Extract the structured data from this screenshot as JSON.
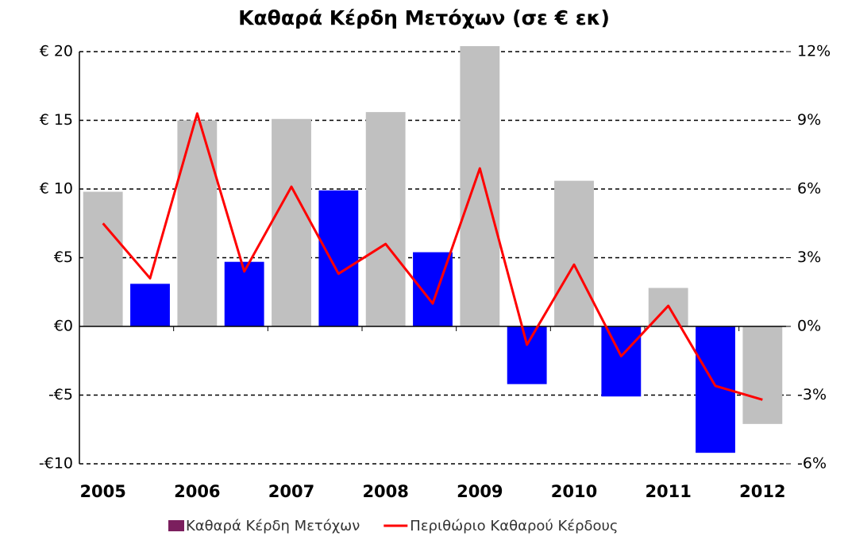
{
  "chart_data": {
    "type": "bar",
    "title": "Καθαρά Κέρδη Μετόχων (σε € εκ)",
    "categories": [
      "2005",
      null,
      "2006",
      null,
      "2007",
      null,
      "2008",
      null,
      "2009",
      null,
      "2010",
      null,
      "2011",
      null,
      "2012"
    ],
    "series": [
      {
        "name": "Καθαρά Κέρδη Μετόχων",
        "type": "bar",
        "color": "#7b1f5e",
        "colors": [
          "#c0c0c0",
          "#0000ff",
          "#c0c0c0",
          "#0000ff",
          "#c0c0c0",
          "#0000ff",
          "#c0c0c0",
          "#0000ff",
          "#c0c0c0",
          "#0000ff",
          "#c0c0c0",
          "#0000ff",
          "#c0c0c0",
          "#0000ff",
          "#c0c0c0"
        ],
        "values": [
          9.8,
          3.1,
          15.0,
          4.7,
          15.1,
          9.9,
          15.6,
          5.4,
          20.4,
          -4.2,
          10.6,
          -5.1,
          2.8,
          -9.2,
          -7.1
        ]
      },
      {
        "name": "Περιθώριο Καθαρού Κέρδους",
        "type": "line",
        "axis": "y2",
        "color": "#ff0000",
        "values": [
          4.5,
          2.1,
          9.3,
          2.4,
          6.1,
          2.3,
          3.6,
          1.0,
          6.9,
          -0.8,
          2.7,
          -1.3,
          0.9,
          -2.6,
          -3.2
        ]
      }
    ],
    "ylim": [
      -10,
      20
    ],
    "yticks": [
      {
        "value": -10,
        "label": "-€10"
      },
      {
        "value": -5,
        "label": "-€5"
      },
      {
        "value": 0,
        "label": "€0"
      },
      {
        "value": 5,
        "label": "€5"
      },
      {
        "value": 10,
        "label": "€ 10"
      },
      {
        "value": 15,
        "label": "€ 15"
      },
      {
        "value": 20,
        "label": "€ 20"
      }
    ],
    "y2lim": [
      -6,
      12
    ],
    "y2ticks": [
      {
        "value": -6,
        "label": "-6%"
      },
      {
        "value": -3,
        "label": "-3%"
      },
      {
        "value": 0,
        "label": "0%"
      },
      {
        "value": 3,
        "label": "3%"
      },
      {
        "value": 6,
        "label": "6%"
      },
      {
        "value": 9,
        "label": "9%"
      },
      {
        "value": 12,
        "label": "12%"
      }
    ],
    "grid": true
  }
}
